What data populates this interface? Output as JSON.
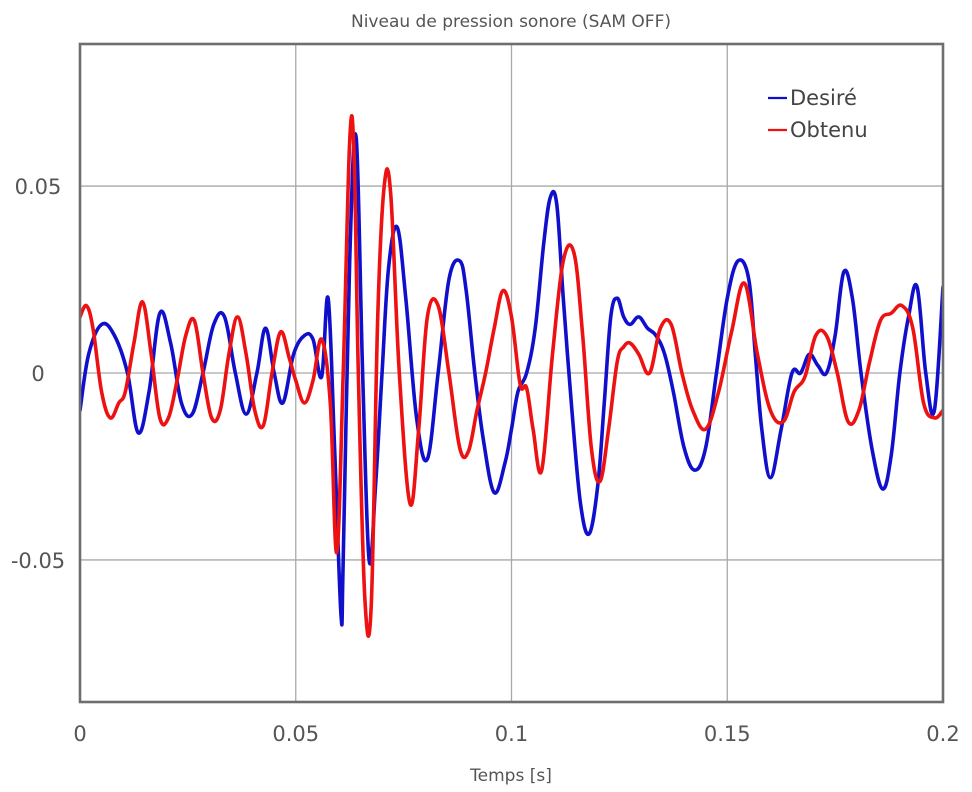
{
  "chart_data": {
    "type": "line",
    "title": "Niveau de pression sonore (SAM OFF)",
    "xlabel": "Temps [s]",
    "ylabel": "",
    "xlim": [
      0,
      0.2
    ],
    "ylim": [
      -0.088,
      0.088
    ],
    "xticks": [
      0,
      0.05,
      0.1,
      0.15,
      0.2
    ],
    "xtick_labels": [
      "0",
      "0.05",
      "0.1",
      "0.15",
      "0.2"
    ],
    "yticks": [
      0.05,
      0,
      -0.05
    ],
    "ytick_labels": [
      "0.05",
      "0",
      "-0.05"
    ],
    "grid": true,
    "legend_position": "top-right",
    "series": [
      {
        "name": "Desiré",
        "color": "#1010cc",
        "x": [
          0,
          0.002,
          0.005,
          0.008,
          0.011,
          0.0135,
          0.016,
          0.0185,
          0.021,
          0.0235,
          0.026,
          0.0285,
          0.031,
          0.0335,
          0.036,
          0.0385,
          0.041,
          0.043,
          0.045,
          0.047,
          0.0495,
          0.052,
          0.054,
          0.056,
          0.0575,
          0.059,
          0.0605,
          0.061,
          0.0625,
          0.064,
          0.0655,
          0.067,
          0.0685,
          0.07,
          0.0715,
          0.0735,
          0.0755,
          0.078,
          0.0805,
          0.083,
          0.0855,
          0.088,
          0.0895,
          0.0915,
          0.0935,
          0.096,
          0.0985,
          0.1,
          0.1015,
          0.1035,
          0.1055,
          0.1075,
          0.109,
          0.1105,
          0.112,
          0.114,
          0.116,
          0.118,
          0.12,
          0.1215,
          0.123,
          0.1245,
          0.126,
          0.1275,
          0.1295,
          0.1315,
          0.1335,
          0.1355,
          0.1375,
          0.14,
          0.1425,
          0.145,
          0.1475,
          0.15,
          0.1525,
          0.155,
          0.1565,
          0.158,
          0.16,
          0.1625,
          0.165,
          0.167,
          0.169,
          0.171,
          0.173,
          0.175,
          0.177,
          0.179,
          0.181,
          0.1835,
          0.186,
          0.188,
          0.19,
          0.192,
          0.194,
          0.196,
          0.198,
          0.2
        ],
        "y": [
          -0.01,
          0.005,
          0.013,
          0.01,
          0.0,
          -0.016,
          -0.005,
          0.016,
          0.008,
          -0.008,
          -0.011,
          0.0,
          0.013,
          0.015,
          0.0,
          -0.011,
          0.0,
          0.012,
          0.0,
          -0.008,
          0.005,
          0.01,
          0.009,
          -0.001,
          0.02,
          -0.02,
          -0.065,
          -0.05,
          0.03,
          0.063,
          0.0,
          -0.05,
          -0.03,
          0.0,
          0.028,
          0.039,
          0.02,
          -0.012,
          -0.023,
          0.0,
          0.025,
          0.03,
          0.022,
          0.0,
          -0.018,
          -0.032,
          -0.024,
          -0.015,
          -0.005,
          0.0,
          0.012,
          0.035,
          0.047,
          0.045,
          0.02,
          -0.01,
          -0.035,
          -0.043,
          -0.03,
          -0.008,
          0.015,
          0.02,
          0.015,
          0.013,
          0.015,
          0.012,
          0.01,
          0.005,
          -0.005,
          -0.02,
          -0.026,
          -0.02,
          0.0,
          0.02,
          0.03,
          0.025,
          0.005,
          -0.015,
          -0.028,
          -0.015,
          0.0,
          0.0,
          0.005,
          0.002,
          0.0,
          0.01,
          0.027,
          0.02,
          0.0,
          -0.02,
          -0.031,
          -0.022,
          0.0,
          0.015,
          0.023,
          0.0,
          -0.01,
          0.023
        ],
        "note": ""
      },
      {
        "name": "Obtenu",
        "color": "#ee1111",
        "x": [
          0,
          0.0015,
          0.003,
          0.005,
          0.007,
          0.009,
          0.0105,
          0.0125,
          0.0145,
          0.0165,
          0.0185,
          0.0205,
          0.0225,
          0.0245,
          0.0265,
          0.0285,
          0.0305,
          0.0325,
          0.0345,
          0.0365,
          0.0385,
          0.0405,
          0.0425,
          0.0445,
          0.0465,
          0.0485,
          0.05,
          0.052,
          0.054,
          0.056,
          0.058,
          0.0595,
          0.061,
          0.0625,
          0.0635,
          0.0645,
          0.066,
          0.0675,
          0.069,
          0.0705,
          0.072,
          0.074,
          0.0765,
          0.0785,
          0.0805,
          0.083,
          0.0855,
          0.088,
          0.09,
          0.092,
          0.094,
          0.096,
          0.098,
          0.1,
          0.102,
          0.1035,
          0.105,
          0.107,
          0.1095,
          0.112,
          0.1145,
          0.1165,
          0.1185,
          0.1205,
          0.1225,
          0.1245,
          0.126,
          0.1275,
          0.1295,
          0.132,
          0.1345,
          0.137,
          0.1395,
          0.142,
          0.145,
          0.148,
          0.151,
          0.154,
          0.157,
          0.16,
          0.163,
          0.1655,
          0.168,
          0.1705,
          0.173,
          0.1755,
          0.178,
          0.1805,
          0.183,
          0.1855,
          0.188,
          0.1905,
          0.193,
          0.1955,
          0.198,
          0.2
        ],
        "y": [
          0.015,
          0.018,
          0.012,
          -0.005,
          -0.012,
          -0.008,
          -0.005,
          0.008,
          0.019,
          0.005,
          -0.012,
          -0.012,
          -0.002,
          0.01,
          0.014,
          0.0,
          -0.012,
          -0.01,
          0.005,
          0.015,
          0.005,
          -0.01,
          -0.014,
          0.0,
          0.011,
          0.004,
          -0.002,
          -0.008,
          -0.002,
          0.009,
          -0.008,
          -0.048,
          0.0,
          0.062,
          0.059,
          0.0,
          -0.06,
          -0.062,
          0.015,
          0.05,
          0.048,
          0.0,
          -0.035,
          -0.015,
          0.015,
          0.018,
          0.0,
          -0.02,
          -0.021,
          -0.01,
          0.0,
          0.012,
          0.022,
          0.015,
          -0.003,
          -0.004,
          -0.015,
          -0.026,
          0.005,
          0.03,
          0.032,
          0.01,
          -0.02,
          -0.029,
          -0.015,
          0.003,
          0.007,
          0.008,
          0.005,
          0.0,
          0.012,
          0.013,
          0.0,
          -0.01,
          -0.015,
          -0.005,
          0.011,
          0.024,
          0.005,
          -0.01,
          -0.013,
          -0.005,
          -0.001,
          0.01,
          0.01,
          0.0,
          -0.013,
          -0.01,
          0.003,
          0.014,
          0.016,
          0.018,
          0.012,
          -0.008,
          -0.012,
          -0.01
        ],
        "note": ""
      }
    ]
  }
}
